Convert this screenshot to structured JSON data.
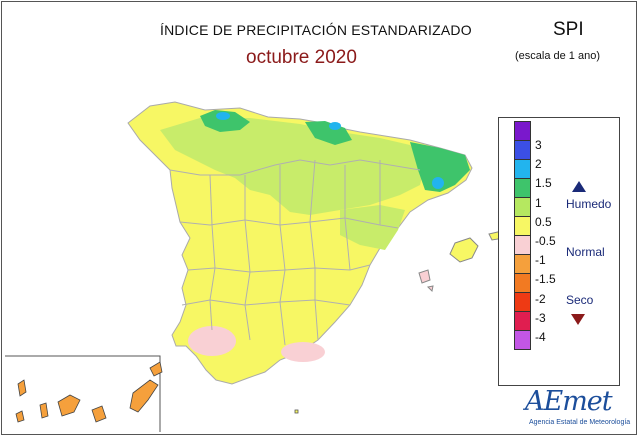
{
  "header": {
    "title": "ÍNDICE DE PRECIPITACIÓN ESTANDARIZADO",
    "subtitle": "octubre 2020",
    "index_name": "SPI",
    "scale_note": "(escala de 1 ano)"
  },
  "legend": {
    "swatch_colors": [
      "#7a18cc",
      "#3b4fe6",
      "#22b4ee",
      "#3ec46b",
      "#b5e860",
      "#f7f764",
      "#f9d0d4",
      "#f5a03c",
      "#f27a22",
      "#ee3a14",
      "#e01e50",
      "#c356e6"
    ],
    "ticks": [
      "3",
      "2",
      "1.5",
      "1",
      "0.5",
      "-0.5",
      "-1",
      "-1.5",
      "-2",
      "-3",
      "-4"
    ],
    "categories": {
      "wet": "Humedo",
      "normal": "Normal",
      "dry": "Seco"
    }
  },
  "logo": {
    "text": "AEmet",
    "subtitle": "Agencia Estatal de Meteorología"
  }
}
